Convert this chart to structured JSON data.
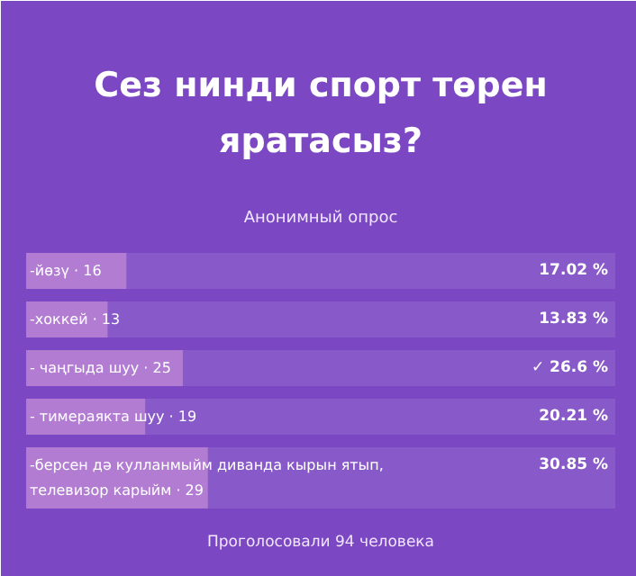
{
  "chart_data": {
    "type": "bar",
    "orientation": "horizontal",
    "title": "Сез нинди спорт төрен яратасыз?",
    "annotations": [
      "Анонимный опрос",
      "Проголосовали 94 человека"
    ],
    "categories": [
      "-йөзү · 16",
      "-хоккей · 13",
      "- чаңгыда шуу · 25",
      "- тимераякта шуу · 19",
      "-берсен дә кулланмыйм диванда кырын ятып, телевизор карыйм · 29"
    ],
    "values": [
      17.02,
      13.83,
      26.6,
      20.21,
      30.85
    ],
    "value_labels": [
      "17.02 %",
      "13.83 %",
      "✓ 26.6 %",
      "20.21 %",
      "30.85 %"
    ],
    "color": "#b983d3",
    "xlim": [
      0,
      100
    ]
  }
}
